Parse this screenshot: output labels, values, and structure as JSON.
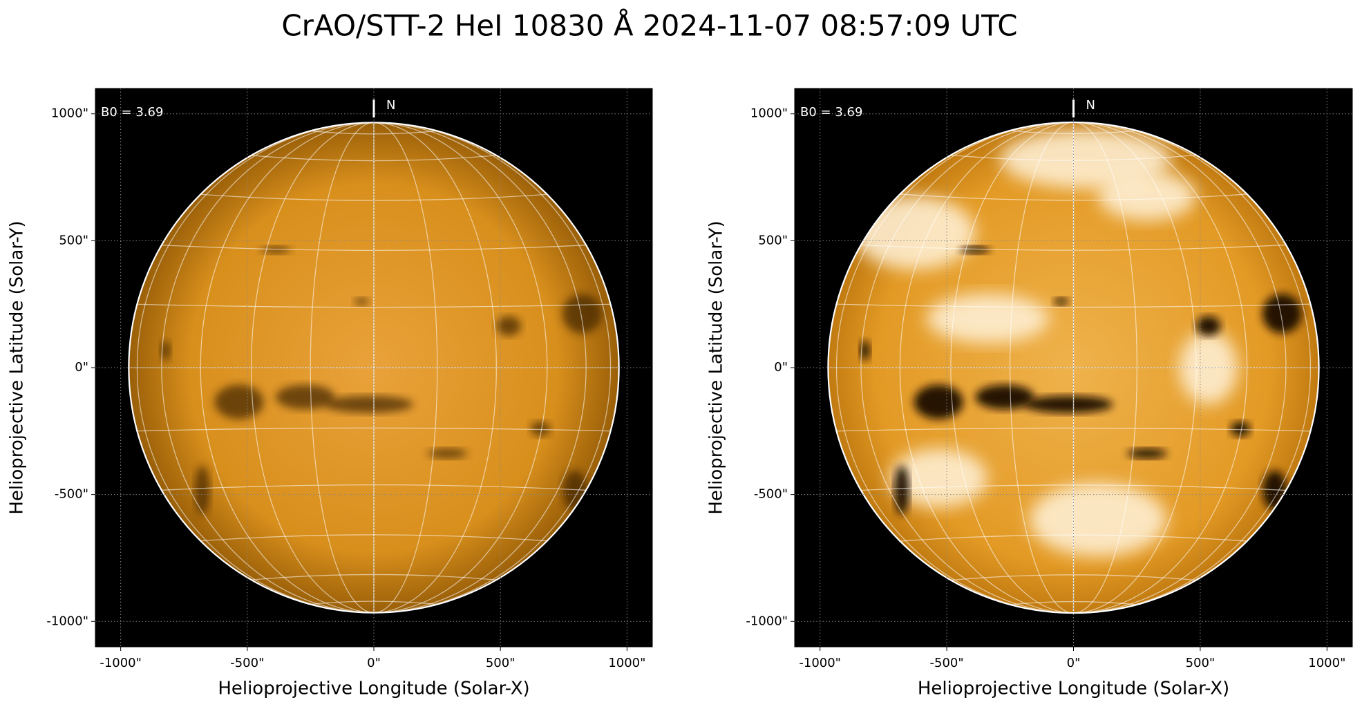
{
  "title": "CrAO/STT-2 HeI 10830 Å 2024-11-07 08:57:09 UTC",
  "chart_data": [
    {
      "type": "image",
      "xlabel": "Helioprojective Longitude (Solar-X)",
      "ylabel": "Helioprojective Latitude (Solar-Y)",
      "annotation": "B0 = 3.69",
      "north_label": "N",
      "disk_radius": 968,
      "contrast": "normal",
      "xlim": [
        -1100,
        1100
      ],
      "ylim": [
        -1100,
        1100
      ],
      "xticks": [
        {
          "value": -1000,
          "label": "-1000\""
        },
        {
          "value": -500,
          "label": "-500\""
        },
        {
          "value": 0,
          "label": "0\""
        },
        {
          "value": 500,
          "label": "500\""
        },
        {
          "value": 1000,
          "label": "1000\""
        }
      ],
      "yticks": [
        {
          "value": -1000,
          "label": "-1000\""
        },
        {
          "value": -500,
          "label": "-500\""
        },
        {
          "value": 0,
          "label": "0\""
        },
        {
          "value": 500,
          "label": "500\""
        },
        {
          "value": 1000,
          "label": "1000\""
        }
      ],
      "grid": true
    },
    {
      "type": "image",
      "xlabel": "Helioprojective Longitude (Solar-X)",
      "ylabel": "Helioprojective Latitude (Solar-Y)",
      "annotation": "B0 = 3.69",
      "north_label": "N",
      "disk_radius": 968,
      "contrast": "high",
      "xlim": [
        -1100,
        1100
      ],
      "ylim": [
        -1100,
        1100
      ],
      "xticks": [
        {
          "value": -1000,
          "label": "-1000\""
        },
        {
          "value": -500,
          "label": "-500\""
        },
        {
          "value": 0,
          "label": "0\""
        },
        {
          "value": 500,
          "label": "500\""
        },
        {
          "value": 1000,
          "label": "1000\""
        }
      ],
      "yticks": [
        {
          "value": -1000,
          "label": "-1000\""
        },
        {
          "value": -500,
          "label": "-500\""
        },
        {
          "value": 0,
          "label": "0\""
        },
        {
          "value": 500,
          "label": "500\""
        },
        {
          "value": 1000,
          "label": "1000\""
        }
      ],
      "grid": true
    }
  ]
}
